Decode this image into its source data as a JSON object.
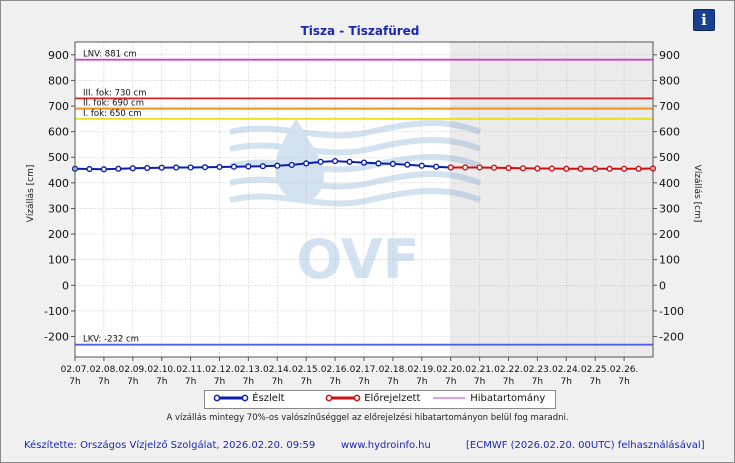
{
  "header": {
    "info_icon": "info-icon",
    "info_label": "i"
  },
  "chart_data": {
    "type": "line",
    "title": "Tisza - Tiszafüred",
    "ylabel": "Vízállás [cm]",
    "ylabel_right": "Vízállás [cm]",
    "ylim": [
      -280,
      950
    ],
    "yticks": [
      -200,
      -100,
      0,
      100,
      200,
      300,
      400,
      500,
      600,
      700,
      800,
      900
    ],
    "xlim": [
      0,
      20
    ],
    "xticks": [
      {
        "date": "02.07.",
        "hour": "7h"
      },
      {
        "date": "02.08.",
        "hour": "7h"
      },
      {
        "date": "02.09.",
        "hour": "7h"
      },
      {
        "date": "02.10.",
        "hour": "7h"
      },
      {
        "date": "02.11.",
        "hour": "7h"
      },
      {
        "date": "02.12.",
        "hour": "7h"
      },
      {
        "date": "02.13.",
        "hour": "7h"
      },
      {
        "date": "02.14.",
        "hour": "7h"
      },
      {
        "date": "02.15.",
        "hour": "7h"
      },
      {
        "date": "02.16.",
        "hour": "7h"
      },
      {
        "date": "02.17.",
        "hour": "7h"
      },
      {
        "date": "02.18.",
        "hour": "7h"
      },
      {
        "date": "02.19.",
        "hour": "7h"
      },
      {
        "date": "02.20.",
        "hour": "7h"
      },
      {
        "date": "02.21.",
        "hour": "7h"
      },
      {
        "date": "02.22.",
        "hour": "7h"
      },
      {
        "date": "02.23.",
        "hour": "7h"
      },
      {
        "date": "02.24.",
        "hour": "7h"
      },
      {
        "date": "02.25.",
        "hour": "7h"
      },
      {
        "date": "02.26.",
        "hour": "7h"
      }
    ],
    "grid": true,
    "forecast_start": 13,
    "reference_lines": [
      {
        "label": "LNV: 881 cm",
        "value": 881,
        "color": "#d040d0"
      },
      {
        "label": "III. fok: 730 cm",
        "value": 730,
        "color": "#e02020"
      },
      {
        "label": "II. fok: 690 cm",
        "value": 690,
        "color": "#f08a1c"
      },
      {
        "label": "I. fok: 650 cm",
        "value": 650,
        "color": "#e8e020"
      },
      {
        "label": "LKV: -232 cm",
        "value": -232,
        "color": "#5060e0"
      }
    ],
    "series": [
      {
        "name": "Észlelt",
        "color": "#0a1fb0",
        "x": [
          0,
          0.5,
          1,
          1.5,
          2,
          2.5,
          3,
          3.5,
          4,
          4.5,
          5,
          5.5,
          6,
          6.5,
          7,
          7.5,
          8,
          8.5,
          9,
          9.5,
          10,
          10.5,
          11,
          11.5,
          12,
          12.5,
          13
        ],
        "y": [
          455,
          454,
          453,
          455,
          457,
          458,
          459,
          460,
          460,
          461,
          462,
          463,
          464,
          465,
          467,
          470,
          476,
          482,
          485,
          482,
          479,
          476,
          474,
          471,
          467,
          463,
          460
        ]
      },
      {
        "name": "Előrejelzett",
        "color": "#d01010",
        "x": [
          13,
          13.5,
          14,
          14.5,
          15,
          15.5,
          16,
          16.5,
          17,
          17.5,
          18,
          18.5,
          19,
          19.5,
          20
        ],
        "y": [
          460,
          460,
          460,
          459,
          458,
          457,
          456,
          456,
          455,
          455,
          455,
          455,
          455,
          455,
          456
        ]
      }
    ],
    "legend": [
      {
        "label": "Észlelt",
        "color": "#0a1fb0"
      },
      {
        "label": "Előrejelzett",
        "color": "#d01010"
      },
      {
        "label": "Hibatartomány",
        "color": "#c040c0"
      }
    ],
    "legend_position": "bottom",
    "note": "A vízállás mintegy 70%-os valószínűséggel az előrejelzési hibatartományon belül fog maradni."
  },
  "footer": {
    "author": "Készítette: Országos Vízjelző Szolgálat, 2026.02.20. 09:59",
    "site": "www.hydroinfo.hu",
    "source": "[ECMWF (2026.02.20. 00UTC) felhasználásával]"
  },
  "watermark": {
    "text": "OVF"
  },
  "colors": {
    "plot_bg": "#ffffff",
    "forecast_bg": "#ebebeb",
    "frame_bg": "#f0f0f0",
    "title": "#1a27b0"
  }
}
